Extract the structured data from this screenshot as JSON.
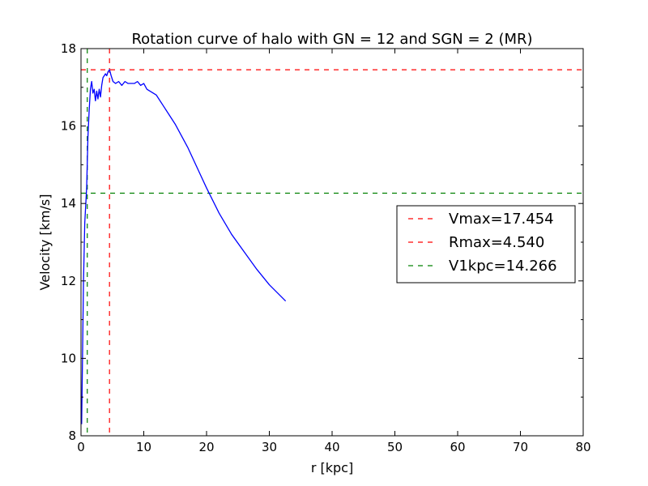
{
  "chart_data": {
    "type": "line",
    "title": "Rotation curve of halo with GN = 12 and SGN = 2 (MR)",
    "xlabel": "r [kpc]",
    "ylabel": "Velocity [km/s]",
    "xlim": [
      0,
      80
    ],
    "ylim": [
      8,
      18
    ],
    "xticks": [
      "0",
      "10",
      "20",
      "30",
      "40",
      "50",
      "60",
      "70",
      "80"
    ],
    "yticks": [
      "8",
      "10",
      "12",
      "14",
      "16",
      "18"
    ],
    "grid": false,
    "legend_position": "right",
    "series": [
      {
        "color": "#0000ff",
        "style": "solid",
        "x": [
          0.1,
          0.4,
          0.6,
          0.9,
          1.1,
          1.3,
          1.5,
          1.7,
          1.9,
          2.1,
          2.3,
          2.5,
          2.7,
          2.9,
          3.1,
          3.3,
          3.5,
          3.7,
          3.9,
          4.1,
          4.3,
          4.54,
          4.8,
          5.1,
          5.5,
          6.0,
          6.5,
          7.0,
          7.5,
          8.0,
          8.5,
          9.0,
          9.5,
          10.0,
          10.5,
          11.0,
          11.5,
          12.0,
          13.0,
          14.0,
          15.0,
          16.0,
          17.0,
          18.0,
          19.0,
          20.0,
          22.0,
          24.0,
          26.0,
          28.0,
          30.0,
          32.6
        ],
        "y": [
          8.3,
          12.0,
          13.5,
          14.4,
          15.7,
          16.4,
          16.95,
          17.15,
          16.85,
          16.95,
          16.65,
          16.9,
          16.7,
          16.95,
          16.75,
          17.05,
          17.25,
          17.3,
          17.35,
          17.3,
          17.4,
          17.454,
          17.3,
          17.15,
          17.1,
          17.15,
          17.05,
          17.15,
          17.1,
          17.1,
          17.1,
          17.15,
          17.05,
          17.1,
          16.95,
          16.9,
          16.85,
          16.8,
          16.55,
          16.3,
          16.05,
          15.75,
          15.45,
          15.1,
          14.75,
          14.4,
          13.75,
          13.2,
          12.75,
          12.3,
          11.9,
          11.48
        ]
      }
    ],
    "reference_lines": [
      {
        "label": "Vmax=17.454",
        "orientation": "horizontal",
        "value": 17.454,
        "color": "#ff0000",
        "style": "dashed"
      },
      {
        "label": "Rmax=4.540",
        "orientation": "vertical",
        "value": 4.54,
        "color": "#ff0000",
        "style": "dashed"
      },
      {
        "label": "V1kpc=14.266",
        "orientation": "horizontal",
        "value": 14.266,
        "color": "#008000",
        "style": "dashed"
      },
      {
        "orientation": "vertical",
        "value": 1.0,
        "color": "#008000",
        "style": "dashed"
      }
    ]
  }
}
